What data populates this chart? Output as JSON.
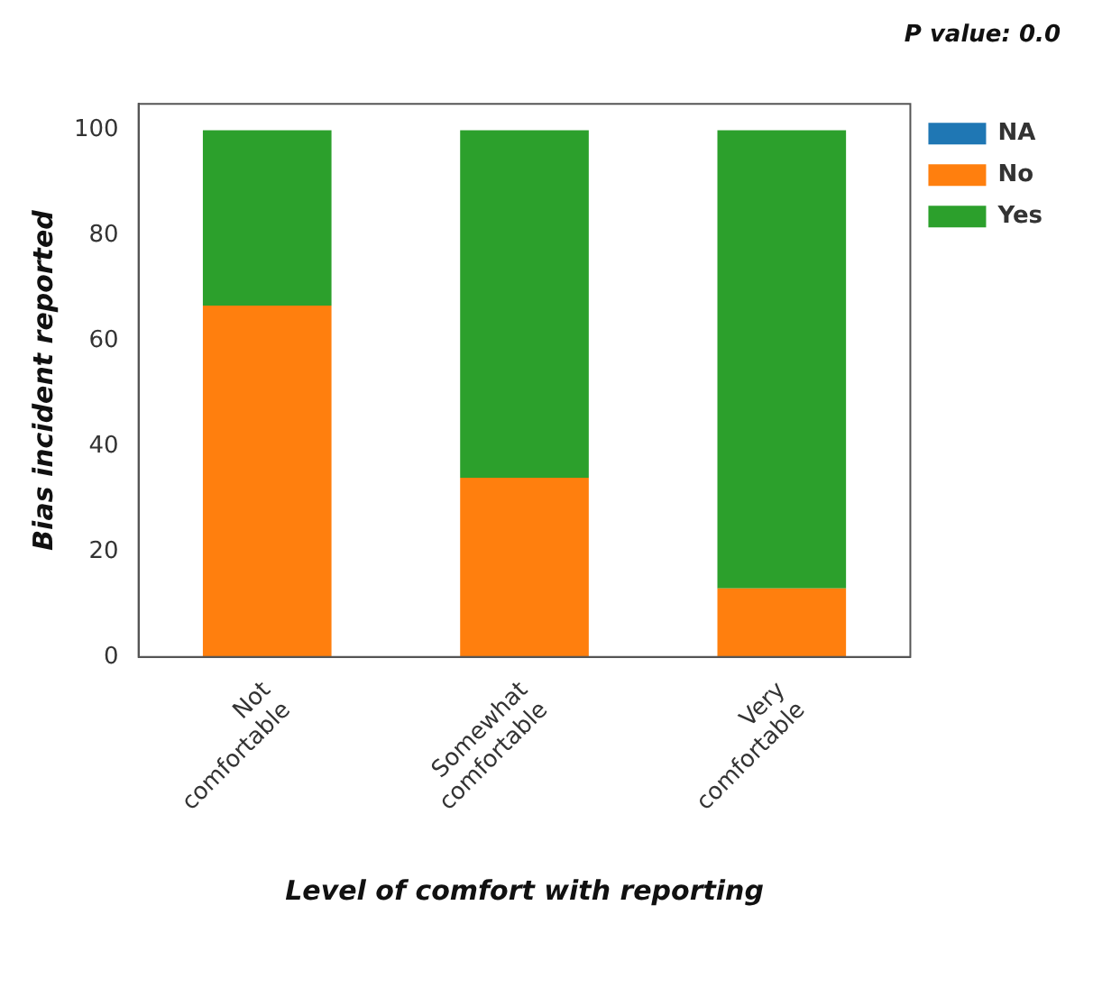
{
  "chart_data": {
    "type": "bar",
    "title": "P value: 0.0",
    "xlabel": "Level of comfort with reporting",
    "ylabel": "Bias incident reported",
    "categories": [
      "Not comfortable",
      "Somewhat comfortable",
      "Very comfortable"
    ],
    "series": [
      {
        "name": "NA",
        "color": "#1f77b4",
        "values": [
          0,
          0,
          0
        ]
      },
      {
        "name": "No",
        "color": "#ff7f0e",
        "values": [
          66.7,
          34,
          13
        ]
      },
      {
        "name": "Yes",
        "color": "#2ca02c",
        "values": [
          33.3,
          66,
          87
        ]
      }
    ],
    "stacked": true,
    "ylim": [
      0,
      105
    ],
    "yticks": [
      0,
      20,
      40,
      60,
      80,
      100
    ],
    "grid": false,
    "legend": "top right"
  }
}
